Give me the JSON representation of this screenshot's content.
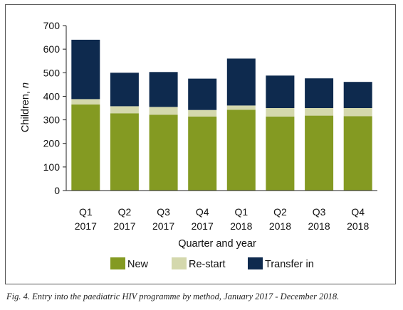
{
  "chart_data": {
    "type": "bar",
    "stacked": true,
    "categories": [
      [
        "Q1",
        "2017"
      ],
      [
        "Q2",
        "2017"
      ],
      [
        "Q3",
        "2017"
      ],
      [
        "Q4",
        "2017"
      ],
      [
        "Q1",
        "2018"
      ],
      [
        "Q2",
        "2018"
      ],
      [
        "Q3",
        "2018"
      ],
      [
        "Q4",
        "2018"
      ]
    ],
    "series": [
      {
        "name": "New",
        "color": "#849a22",
        "values": [
          365,
          328,
          322,
          314,
          343,
          314,
          318,
          316
        ]
      },
      {
        "name": "Re-start",
        "color": "#d4d8ad",
        "values": [
          23,
          30,
          33,
          28,
          18,
          36,
          32,
          34
        ]
      },
      {
        "name": "Transfer in",
        "color": "#0e2a4e",
        "values": [
          252,
          142,
          148,
          133,
          199,
          138,
          126,
          111
        ]
      }
    ],
    "xlabel": "Quarter and year",
    "ylabel_main": "Children, ",
    "ylabel_italic": "n",
    "ylim": [
      0,
      700
    ],
    "yticks": [
      0,
      100,
      200,
      300,
      400,
      500,
      600,
      700
    ],
    "grid": false,
    "legend_position": "bottom"
  },
  "caption": "Fig. 4. Entry into the paediatric HIV programme by method, January 2017 - December 2018."
}
